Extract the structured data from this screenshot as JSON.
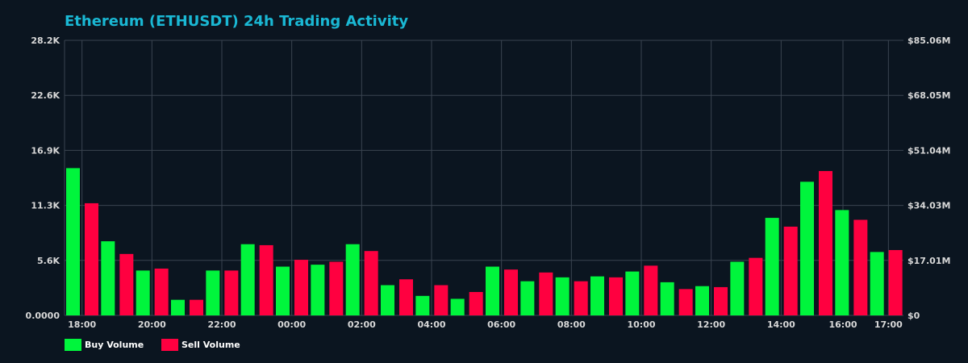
{
  "chart_data": {
    "type": "bar",
    "title": "Ethereum (ETHUSDT) 24h Trading Activity",
    "xlabel": "",
    "ylabel": "",
    "y_left_ticks": [
      "0.0000",
      "5.6K",
      "11.3K",
      "16.9K",
      "22.6K",
      "28.2K"
    ],
    "y_right_ticks": [
      "$0",
      "$17.01M",
      "$34.03M",
      "$51.04M",
      "$68.05M",
      "$85.06M"
    ],
    "ylim": [
      0,
      28200
    ],
    "x_ticks": [
      "18:00",
      "20:00",
      "22:00",
      "00:00",
      "02:00",
      "04:00",
      "06:00",
      "08:00",
      "10:00",
      "12:00",
      "14:00",
      "16:00",
      "17:00"
    ],
    "grid": true,
    "legend_position": "bottom-left",
    "colors": {
      "buy": "#00f53c",
      "sell": "#ff0040",
      "title": "#1ab8d4",
      "background": "#0b1520",
      "grid": "#3a4450",
      "tick_text": "#d8d8d8"
    },
    "series": [
      {
        "name": "Buy Volume",
        "values": [
          15100,
          7600,
          4600,
          1600,
          4600,
          7300,
          5000,
          5200,
          7300,
          3100,
          2000,
          1700,
          5000,
          3500,
          3900,
          4000,
          4500,
          3400,
          3000,
          5500,
          10000,
          13700,
          10800,
          6500
        ]
      },
      {
        "name": "Sell Volume",
        "values": [
          11500,
          6300,
          4800,
          1600,
          4600,
          7200,
          5700,
          5500,
          6600,
          3700,
          3100,
          2400,
          4700,
          4400,
          3500,
          3900,
          5100,
          2700,
          2900,
          5900,
          9100,
          14800,
          9800,
          6700
        ]
      }
    ]
  }
}
